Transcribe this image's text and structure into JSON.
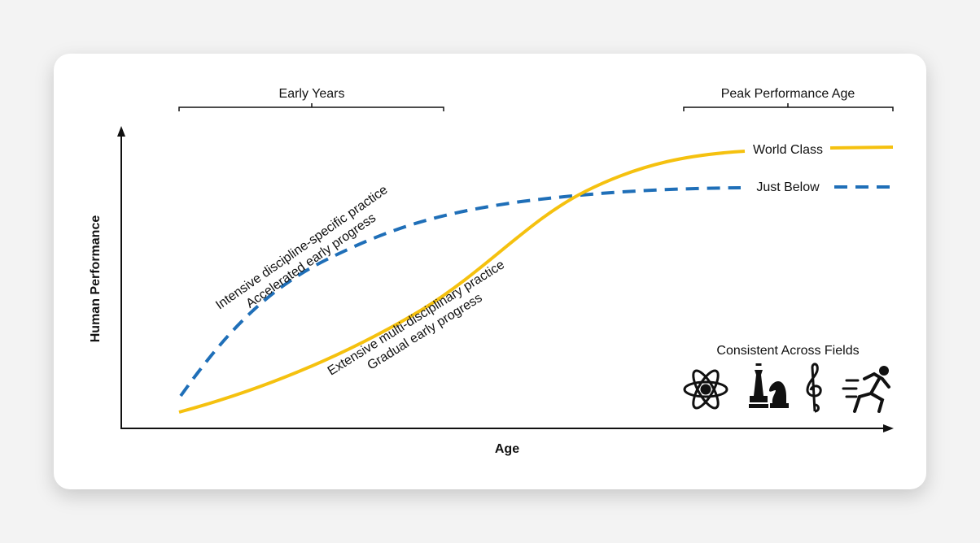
{
  "brackets": [
    {
      "label": "Early Years"
    },
    {
      "label": "Peak Performance Age"
    }
  ],
  "axes": {
    "y_label": "Human Performance",
    "x_label": "Age"
  },
  "curves": [
    {
      "name": "World Class",
      "annotation": [
        "Extensive multi-disciplinary practice",
        "Gradual early progress"
      ]
    },
    {
      "name": "Just Below",
      "annotation": [
        "Intensive discipline-specific practice",
        "Accelerated early progress"
      ]
    }
  ],
  "fields": {
    "title": "Consistent Across Fields"
  }
}
